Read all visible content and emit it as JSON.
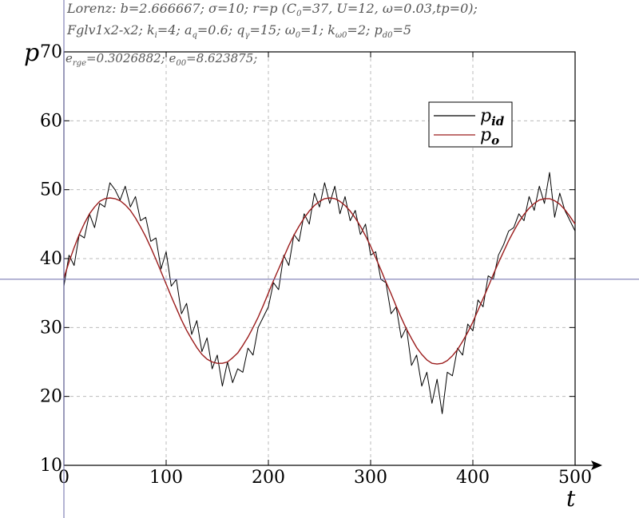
{
  "info": {
    "line1": "Lorenz: b=2.666667; σ=10; r=p (C",
    "line1_sub": "0",
    "line1_tail": "=37, U=12, ω=0.03,tp=0);",
    "line2_a": "Fglv1x2-x2; k",
    "line2_a_sub": "i",
    "line2_b": "=4; a",
    "line2_b_sub": "q",
    "line2_c": "=0.6; q",
    "line2_c_sub": "γ",
    "line2_d": "=15; ω",
    "line2_d_sub": "0",
    "line2_e": "=1; k",
    "line2_e_sub": "ω0",
    "line2_f": "=2; p",
    "line2_f_sub": "d0",
    "line2_g": "=5",
    "line3_a": "e",
    "line3_a_sub": "rge",
    "line3_b": "=0.3026882; e",
    "line3_b_sub": "00",
    "line3_c": "=8.623875;"
  },
  "chart_data": {
    "type": "line",
    "title": "",
    "xlabel": "t",
    "ylabel": "p",
    "xlim": [
      0,
      500
    ],
    "ylim": [
      10,
      70
    ],
    "xticks": [
      0,
      100,
      200,
      300,
      400,
      500
    ],
    "yticks": [
      10,
      20,
      30,
      40,
      50,
      60,
      70
    ],
    "xtick_labels": [
      "0",
      "100",
      "200",
      "300",
      "400",
      "500"
    ],
    "ytick_labels": [
      "10",
      "20",
      "30",
      "40",
      "50",
      "60",
      "70"
    ],
    "grid": true,
    "legend_position": "top-right",
    "reference_line_y": 37,
    "series": [
      {
        "name": "p_id",
        "legend_main": "p",
        "legend_sub": "id",
        "color": "#000000",
        "x": [
          0,
          5,
          10,
          15,
          20,
          25,
          30,
          35,
          40,
          45,
          50,
          55,
          60,
          65,
          70,
          75,
          80,
          85,
          90,
          95,
          100,
          105,
          110,
          115,
          120,
          125,
          130,
          135,
          140,
          145,
          150,
          155,
          160,
          165,
          170,
          175,
          180,
          185,
          190,
          195,
          200,
          205,
          210,
          215,
          220,
          225,
          230,
          235,
          240,
          245,
          250,
          255,
          260,
          265,
          270,
          275,
          280,
          285,
          290,
          295,
          300,
          305,
          310,
          315,
          320,
          325,
          330,
          335,
          340,
          345,
          350,
          355,
          360,
          365,
          370,
          375,
          380,
          385,
          390,
          395,
          400,
          405,
          410,
          415,
          420,
          425,
          430,
          435,
          440,
          445,
          450,
          455,
          460,
          465,
          470,
          475,
          480,
          485,
          490,
          495,
          500
        ],
        "y": [
          36,
          40.5,
          39,
          43.5,
          43,
          46.5,
          44.5,
          48,
          47.5,
          51,
          50,
          48.5,
          50.5,
          47.5,
          49,
          45.5,
          46,
          42.5,
          43,
          38.5,
          41,
          36,
          37,
          32,
          33.5,
          29,
          31,
          26.5,
          28.5,
          24,
          26,
          21.5,
          25,
          22,
          24,
          23.5,
          27,
          26,
          30,
          31.5,
          33,
          36.5,
          35.5,
          40.5,
          39,
          43.5,
          42.5,
          46.5,
          45,
          49.5,
          47.5,
          51,
          48,
          50.5,
          46.5,
          49,
          45.5,
          47,
          43.5,
          45,
          40.5,
          41,
          37,
          36.5,
          32,
          33,
          28.5,
          30,
          24.5,
          26,
          21.5,
          23.5,
          19,
          22.5,
          17.5,
          23.5,
          23,
          27,
          26,
          30.5,
          29.5,
          34,
          33,
          37.5,
          37,
          40.5,
          42,
          44,
          44.5,
          46.5,
          45.5,
          49,
          47,
          50.5,
          48,
          52.5,
          46,
          49.5,
          47,
          45.5,
          44
        ]
      },
      {
        "name": "p_o",
        "legend_main": "p",
        "legend_sub": "o",
        "color": "#9b1c1c",
        "x": [
          0,
          5,
          10,
          15,
          20,
          25,
          30,
          35,
          40,
          45,
          50,
          55,
          60,
          65,
          70,
          75,
          80,
          85,
          90,
          95,
          100,
          105,
          110,
          115,
          120,
          125,
          130,
          135,
          140,
          145,
          150,
          155,
          160,
          165,
          170,
          175,
          180,
          185,
          190,
          195,
          200,
          205,
          210,
          215,
          220,
          225,
          230,
          235,
          240,
          245,
          250,
          255,
          260,
          265,
          270,
          275,
          280,
          285,
          290,
          295,
          300,
          305,
          310,
          315,
          320,
          325,
          330,
          335,
          340,
          345,
          350,
          355,
          360,
          365,
          370,
          375,
          380,
          385,
          390,
          395,
          400,
          405,
          410,
          415,
          420,
          425,
          430,
          435,
          440,
          445,
          450,
          455,
          460,
          465,
          470,
          475,
          480,
          485,
          490,
          495,
          500
        ],
        "y": [
          37.2,
          39.5,
          41.6,
          43.5,
          45.1,
          46.5,
          47.5,
          48.3,
          48.7,
          48.8,
          48.7,
          48.4,
          47.8,
          47,
          45.9,
          44.6,
          43.2,
          41.6,
          39.9,
          38.1,
          36.3,
          34.5,
          32.8,
          31.1,
          29.6,
          28.3,
          27.1,
          26.1,
          25.4,
          25,
          24.8,
          24.8,
          25,
          25.6,
          26.3,
          27.4,
          28.6,
          30,
          31.5,
          33.2,
          35,
          36.8,
          38.5,
          40.2,
          41.9,
          43.4,
          44.7,
          45.9,
          46.9,
          47.7,
          48.3,
          48.7,
          48.8,
          48.7,
          48.3,
          47.7,
          46.9,
          45.9,
          44.7,
          43.3,
          41.8,
          40.1,
          38.4,
          36.6,
          34.9,
          33.1,
          31.4,
          29.8,
          28.4,
          27.1,
          26.1,
          25.3,
          24.8,
          24.7,
          24.8,
          25.2,
          25.9,
          26.8,
          28,
          29.3,
          30.8,
          32.5,
          34.2,
          35.9,
          37.7,
          39.4,
          41,
          42.6,
          44,
          45.3,
          46.4,
          47.3,
          48,
          48.5,
          48.7,
          48.7,
          48.4,
          47.9,
          47.1,
          46.1,
          45
        ]
      }
    ]
  }
}
